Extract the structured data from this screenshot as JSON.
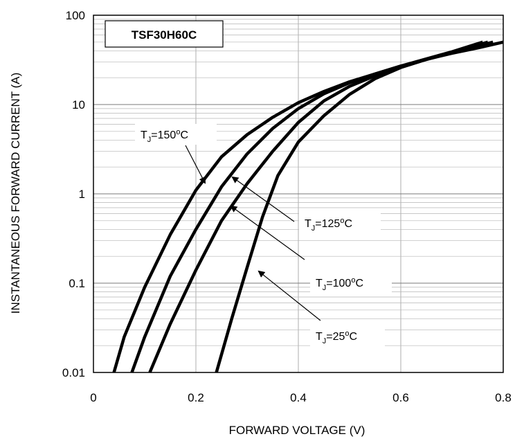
{
  "chart_data": {
    "type": "line",
    "title": "TSF30H60C",
    "xlabel": "FORWARD VOLTAGE (V)",
    "ylabel": "INSTANTANEOUS  FORWARD CURRENT (A)",
    "xlim": [
      0,
      0.8
    ],
    "ylim": [
      0.01,
      100
    ],
    "yscale": "log",
    "grid": true,
    "x_ticks": [
      "0",
      "0.2",
      "0.4",
      "0.6",
      "0.8"
    ],
    "y_ticks": [
      "0.01",
      "0.1",
      "1",
      "10",
      "100"
    ],
    "series": [
      {
        "name": "TJ=150°C",
        "label_parts": {
          "main": "T",
          "sub": "J",
          "mid": "=150",
          "sup": "o",
          "end": "C"
        },
        "x": [
          0.04,
          0.06,
          0.1,
          0.15,
          0.2,
          0.25,
          0.3,
          0.35,
          0.4,
          0.45,
          0.5,
          0.55,
          0.6,
          0.65,
          0.7,
          0.76
        ],
        "y": [
          0.01,
          0.025,
          0.09,
          0.35,
          1.1,
          2.6,
          4.6,
          7.2,
          10.5,
          14.0,
          18.0,
          22.0,
          27.0,
          32.5,
          39.0,
          50.0
        ]
      },
      {
        "name": "TJ=125°C",
        "label_parts": {
          "main": "T",
          "sub": "J",
          "mid": "=125",
          "sup": "o",
          "end": "C"
        },
        "x": [
          0.075,
          0.1,
          0.15,
          0.2,
          0.25,
          0.3,
          0.35,
          0.4,
          0.45,
          0.5,
          0.55,
          0.6,
          0.65,
          0.7,
          0.77
        ],
        "y": [
          0.01,
          0.025,
          0.12,
          0.4,
          1.2,
          2.8,
          5.4,
          9.0,
          13.2,
          17.5,
          22.0,
          27.0,
          32.0,
          38.5,
          50.0
        ]
      },
      {
        "name": "TJ=100°C",
        "label_parts": {
          "main": "T",
          "sub": "J",
          "mid": "=100",
          "sup": "o",
          "end": "C"
        },
        "x": [
          0.11,
          0.15,
          0.2,
          0.25,
          0.3,
          0.35,
          0.4,
          0.45,
          0.5,
          0.55,
          0.6,
          0.65,
          0.7,
          0.78
        ],
        "y": [
          0.01,
          0.035,
          0.14,
          0.5,
          1.3,
          3.0,
          6.3,
          11.0,
          16.0,
          21.0,
          26.5,
          32.0,
          38.0,
          50.0
        ]
      },
      {
        "name": "TJ=25°C",
        "label_parts": {
          "main": "T",
          "sub": "J",
          "mid": "=25",
          "sup": "o",
          "end": "C"
        },
        "x": [
          0.24,
          0.27,
          0.3,
          0.33,
          0.36,
          0.4,
          0.45,
          0.5,
          0.55,
          0.6,
          0.65,
          0.7,
          0.75,
          0.8
        ],
        "y": [
          0.01,
          0.04,
          0.15,
          0.55,
          1.6,
          3.8,
          7.5,
          13.0,
          19.5,
          26.0,
          32.0,
          37.5,
          43.0,
          50.0
        ]
      }
    ]
  }
}
